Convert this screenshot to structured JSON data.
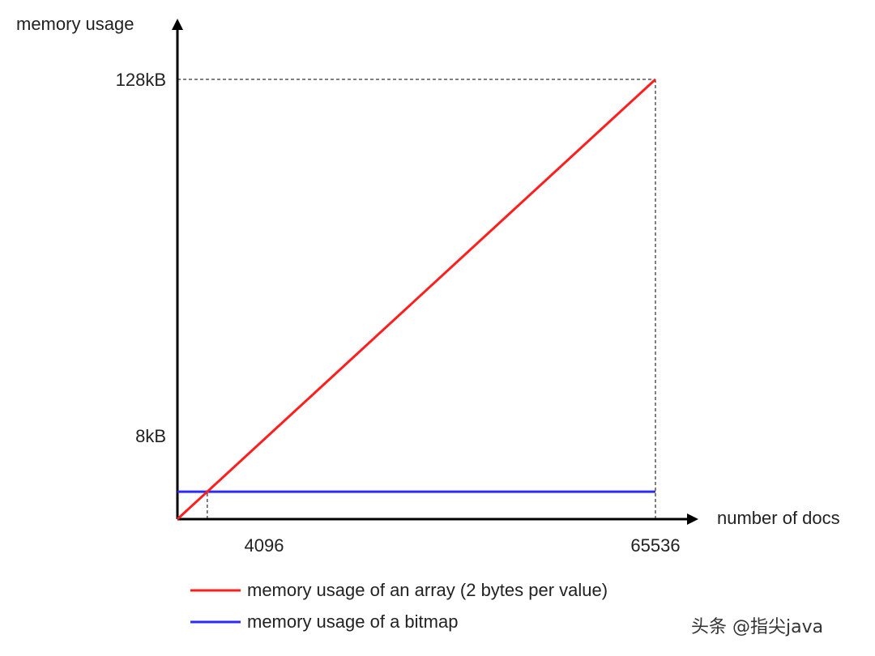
{
  "chart_data": {
    "type": "line",
    "ylabel": "memory usage",
    "xlabel": "number of docs",
    "x_ticks": [
      "4096",
      "65536"
    ],
    "y_ticks": [
      "8kB",
      "128kB"
    ],
    "xlim": [
      0,
      65536
    ],
    "ylim": [
      0,
      128
    ],
    "series": [
      {
        "name": "memory usage of an array (2 bytes per value)",
        "color": "#ff1e1e",
        "x": [
          0,
          65536
        ],
        "y": [
          0,
          128
        ]
      },
      {
        "name": "memory usage of a bitmap",
        "color": "#2b2bff",
        "x": [
          0,
          65536
        ],
        "y": [
          8,
          8
        ]
      }
    ],
    "reference_lines": [
      {
        "x": 4096,
        "y": 8
      },
      {
        "x": 65536,
        "y": 128
      }
    ],
    "grid": false,
    "legend_position": "bottom-left"
  },
  "watermark": "头条 @指尖java"
}
